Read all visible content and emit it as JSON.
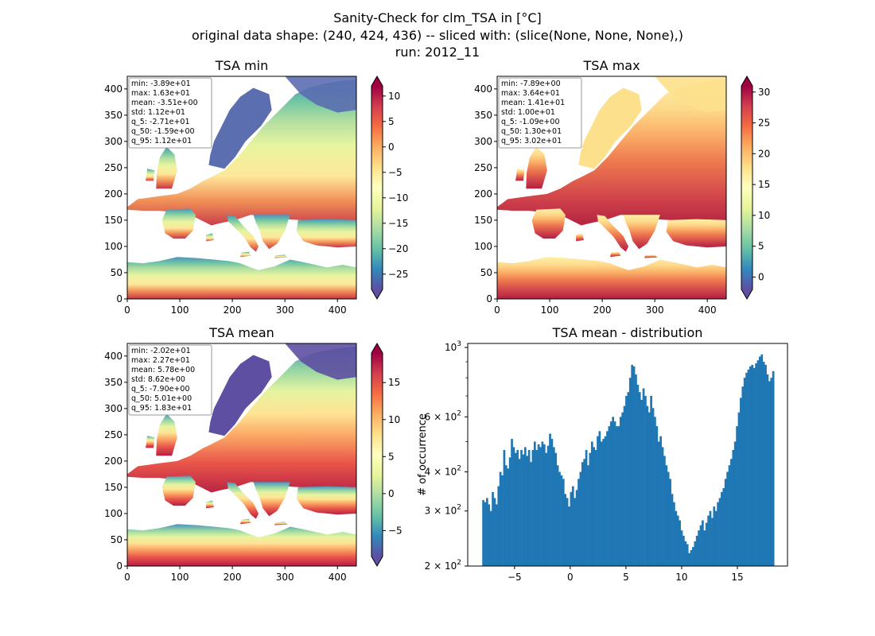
{
  "figure": {
    "title_lines": [
      "Sanity-Check for clm_TSA in [°C]",
      "original data shape: (240, 424, 436) -- sliced with: (slice(None, None, None),)",
      "run: 2012_11"
    ]
  },
  "chart_data": [
    {
      "type": "heatmap",
      "id": "min",
      "title": "TSA min",
      "xlim": [
        0,
        436
      ],
      "ylim": [
        0,
        424
      ],
      "x_ticks": [
        0,
        100,
        200,
        300,
        400
      ],
      "y_ticks": [
        0,
        50,
        100,
        150,
        200,
        250,
        300,
        350,
        400
      ],
      "colormap": "Spectral_r",
      "colorbar": {
        "range": [
          -28,
          12
        ],
        "ticks": [
          10,
          5,
          0,
          -5,
          -10,
          -15,
          -20,
          -25
        ],
        "tick_labels": [
          "10",
          "5",
          "0",
          "−5",
          "−10",
          "−15",
          "−20",
          "−25"
        ],
        "extend": "both"
      },
      "stats": [
        "min: -3.89e+01",
        "max: 1.63e+01",
        "mean: -3.51e+00",
        "std: 1.12e+01",
        "q_5: -2.71e+01",
        "q_50: -1.59e+00",
        "q_95: 1.12e+01"
      ]
    },
    {
      "type": "heatmap",
      "id": "max",
      "title": "TSA max",
      "xlim": [
        0,
        436
      ],
      "ylim": [
        0,
        424
      ],
      "x_ticks": [
        0,
        100,
        200,
        300,
        400
      ],
      "y_ticks": [
        0,
        50,
        100,
        150,
        200,
        250,
        300,
        350,
        400
      ],
      "colormap": "Spectral_r",
      "colorbar": {
        "range": [
          -2,
          31
        ],
        "ticks": [
          30,
          25,
          20,
          15,
          10,
          5,
          0
        ],
        "tick_labels": [
          "30",
          "25",
          "20",
          "15",
          "10",
          "5",
          "0"
        ],
        "extend": "both"
      },
      "stats": [
        "min: -7.89e+00",
        "max: 3.64e+01",
        "mean: 1.41e+01",
        "std: 1.00e+01",
        "q_5: -1.09e+00",
        "q_50: 1.30e+01",
        "q_95: 3.02e+01"
      ]
    },
    {
      "type": "heatmap",
      "id": "mean",
      "title": "TSA mean",
      "xlim": [
        0,
        436
      ],
      "ylim": [
        0,
        424
      ],
      "x_ticks": [
        0,
        100,
        200,
        300,
        400
      ],
      "y_ticks": [
        0,
        50,
        100,
        150,
        200,
        250,
        300,
        350,
        400
      ],
      "colormap": "Spectral_r",
      "colorbar": {
        "range": [
          -8.5,
          19
        ],
        "ticks": [
          15,
          10,
          5,
          0,
          -5
        ],
        "tick_labels": [
          "15",
          "10",
          "5",
          "0",
          "−5"
        ],
        "extend": "both"
      },
      "stats": [
        "min: -2.02e+01",
        "max: 2.27e+01",
        "mean: 5.78e+00",
        "std: 8.62e+00",
        "q_5: -7.90e+00",
        "q_50: 5.01e+00",
        "q_95: 1.83e+01"
      ]
    },
    {
      "type": "bar",
      "id": "hist",
      "title": "TSA mean - distribution",
      "ylabel": "# of occurrence",
      "yscale": "log",
      "color": "#1f77b4",
      "xlim": [
        -9.2,
        19.5
      ],
      "ylim": [
        200,
        1030
      ],
      "x_ticks": [
        -5,
        0,
        5,
        10,
        15
      ],
      "x_tick_labels": [
        "−5",
        "0",
        "5",
        "10",
        "15"
      ],
      "y_ticks": [
        {
          "value": 200,
          "base": "2 × 10",
          "exp": "2"
        },
        {
          "value": 300,
          "base": "3 × 10",
          "exp": "2"
        },
        {
          "value": 400,
          "base": "4 × 10",
          "exp": "2"
        },
        {
          "value": 600,
          "base": "6 × 10",
          "exp": "2"
        },
        {
          "value": 1000,
          "base": "10",
          "exp": "3"
        }
      ],
      "bin_range": [
        -7.9,
        18.3
      ],
      "values": [
        325,
        320,
        330,
        315,
        300,
        345,
        330,
        315,
        360,
        400,
        390,
        470,
        420,
        410,
        445,
        510,
        480,
        460,
        470,
        440,
        470,
        455,
        480,
        450,
        470,
        430,
        470,
        500,
        470,
        490,
        480,
        500,
        490,
        460,
        485,
        530,
        510,
        480,
        460,
        420,
        400,
        390,
        380,
        340,
        330,
        310,
        345,
        360,
        330,
        350,
        380,
        400,
        430,
        440,
        470,
        420,
        460,
        500,
        480,
        470,
        520,
        540,
        500,
        510,
        520,
        540,
        560,
        580,
        600,
        580,
        560,
        560,
        600,
        620,
        650,
        700,
        720,
        800,
        880,
        870,
        820,
        760,
        720,
        680,
        740,
        700,
        650,
        620,
        700,
        640,
        600,
        560,
        500,
        520,
        480,
        450,
        420,
        400,
        380,
        340,
        320,
        300,
        290,
        280,
        260,
        250,
        240,
        235,
        220,
        225,
        230,
        240,
        250,
        260,
        270,
        280,
        260,
        275,
        290,
        300,
        285,
        310,
        300,
        320,
        330,
        345,
        355,
        380,
        400,
        420,
        440,
        470,
        500,
        560,
        620,
        690,
        750,
        800,
        830,
        850,
        870,
        880,
        860,
        890,
        910,
        935,
        950,
        900,
        880,
        820,
        780,
        800,
        840
      ]
    }
  ]
}
